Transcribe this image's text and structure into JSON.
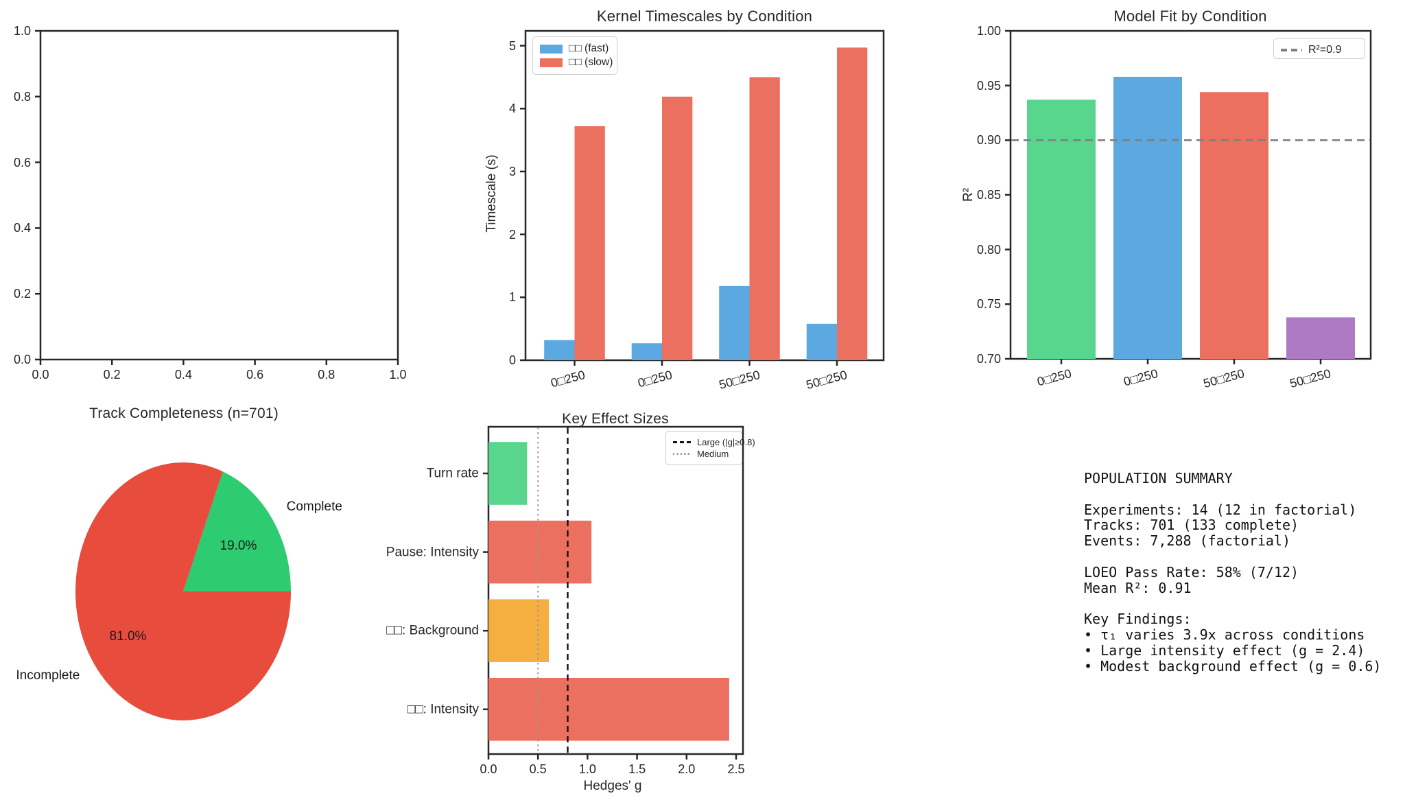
{
  "palette": {
    "bar_blue": "#5CA9E2",
    "bar_red": "#EC705F",
    "bar_green": "#58D68D",
    "bar_purple": "#AF7AC4",
    "bar_orange": "#F5AF41",
    "pie_green": "#2ECC71",
    "pie_red": "#E74C3C",
    "ref_gray": "#7f7f7f",
    "axis": "#262626"
  },
  "chart_data": [
    {
      "type": "empty",
      "title": "",
      "xlim": [
        0.0,
        1.0
      ],
      "ylim": [
        0.0,
        1.0
      ],
      "xtick_labels": [
        "0.0",
        "0.2",
        "0.4",
        "0.6",
        "0.8",
        "1.0"
      ],
      "ytick_labels": [
        "0.0",
        "0.2",
        "0.4",
        "0.6",
        "0.8",
        "1.0"
      ],
      "grid": false
    },
    {
      "type": "bar",
      "title": "Kernel Timescales by Condition",
      "ylabel": "Timescale (s)",
      "categories": [
        "0□250",
        "0□250",
        "50□250",
        "50□250"
      ],
      "series": [
        {
          "name": "□□ (fast)",
          "color_key": "bar_blue",
          "values": [
            0.32,
            0.27,
            1.18,
            0.58
          ]
        },
        {
          "name": "□□ (slow)",
          "color_key": "bar_red",
          "values": [
            3.72,
            4.19,
            4.5,
            4.97
          ]
        }
      ],
      "ylim": [
        0,
        5.24
      ],
      "ytick_labels": [
        "0",
        "1",
        "2",
        "3",
        "4",
        "5"
      ],
      "legend_position": "upper left",
      "grid": false
    },
    {
      "type": "bar",
      "title": "Model Fit by Condition",
      "ylabel": "R²",
      "categories": [
        "0□250",
        "0□250",
        "50□250",
        "50□250"
      ],
      "values": [
        0.937,
        0.958,
        0.944,
        0.738
      ],
      "bar_color_keys": [
        "bar_green",
        "bar_blue",
        "bar_red",
        "bar_purple"
      ],
      "ylim": [
        0.7,
        1.0
      ],
      "ytick_labels": [
        "0.70",
        "0.75",
        "0.80",
        "0.85",
        "0.90",
        "0.95",
        "1.00"
      ],
      "ref_line": {
        "value": 0.9,
        "label": "R²=0.9",
        "style": "dashed"
      },
      "legend_position": "upper right",
      "grid": false
    },
    {
      "type": "pie",
      "title": "Track Completeness (n=701)",
      "slices": [
        {
          "label": "Complete",
          "value": 19.0,
          "pct_label": "19.0%",
          "color_key": "pie_green"
        },
        {
          "label": "Incomplete",
          "value": 81.0,
          "pct_label": "81.0%",
          "color_key": "pie_red"
        }
      ],
      "start_angle": 0,
      "counterclock": true
    },
    {
      "type": "barh",
      "title": "Key Effect Sizes",
      "xlabel": "Hedges' g",
      "categories": [
        "Turn rate",
        "Pause: Intensity",
        "□□: Background",
        "□□: Intensity"
      ],
      "values": [
        0.39,
        1.04,
        0.61,
        2.43
      ],
      "bar_color_keys": [
        "bar_green",
        "bar_red",
        "bar_orange",
        "bar_red"
      ],
      "xlim": [
        0,
        2.57
      ],
      "xtick_labels": [
        "0.0",
        "0.5",
        "1.0",
        "1.5",
        "2.0",
        "2.5"
      ],
      "ref_lines": [
        {
          "value": 0.8,
          "label": "Large (|g|≥0.8)",
          "style": "dashed",
          "color": "#111111"
        },
        {
          "value": 0.5,
          "label": "Medium",
          "style": "dotted",
          "color": "#9a9a9a"
        }
      ],
      "legend_position": "upper right",
      "grid": false
    }
  ],
  "summary": {
    "text": "POPULATION SUMMARY\n\nExperiments: 14 (12 in factorial)\nTracks: 701 (133 complete)\nEvents: 7,288 (factorial)\n\nLOEO Pass Rate: 58% (7/12)\nMean R²: 0.91\n\nKey Findings:\n• τ₁ varies 3.9x across conditions\n• Large intensity effect (g = 2.4)\n• Modest background effect (g = 0.6)"
  }
}
